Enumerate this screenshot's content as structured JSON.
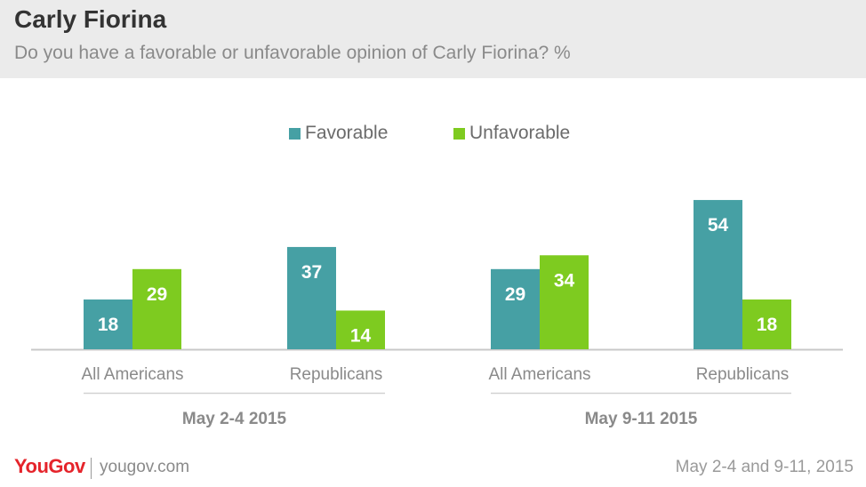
{
  "header": {
    "title": "Carly Fiorina",
    "subtitle": "Do you have a favorable or unfavorable opinion of Carly Fiorina? %"
  },
  "footer": {
    "logo_text": "YouGov",
    "site": "yougov.com",
    "date": "May 2-4 and 9-11, 2015"
  },
  "colors": {
    "favorable": "#46a0a4",
    "unfavorable": "#7ecb20",
    "header_bg": "#ebebeb",
    "logo": "#e5242b"
  },
  "chart_data": {
    "type": "bar",
    "title": "Carly Fiorina",
    "subtitle": "Do you have a favorable or unfavorable opinion of Carly Fiorina? %",
    "legend_position": "top-center",
    "grid": false,
    "ylim": [
      0,
      60
    ],
    "groups": [
      {
        "label": "May 2-4 2015",
        "categories": [
          "All Americans",
          "Republicans"
        ]
      },
      {
        "label": "May 9-11 2015",
        "categories": [
          "All Americans",
          "Republicans"
        ]
      }
    ],
    "categories": [
      "All Americans",
      "Republicans",
      "All Americans",
      "Republicans"
    ],
    "series": [
      {
        "name": "Favorable",
        "color": "#46a0a4",
        "values": [
          18,
          37,
          29,
          54
        ]
      },
      {
        "name": "Unfavorable",
        "color": "#7ecb20",
        "values": [
          29,
          14,
          34,
          18
        ]
      }
    ]
  }
}
